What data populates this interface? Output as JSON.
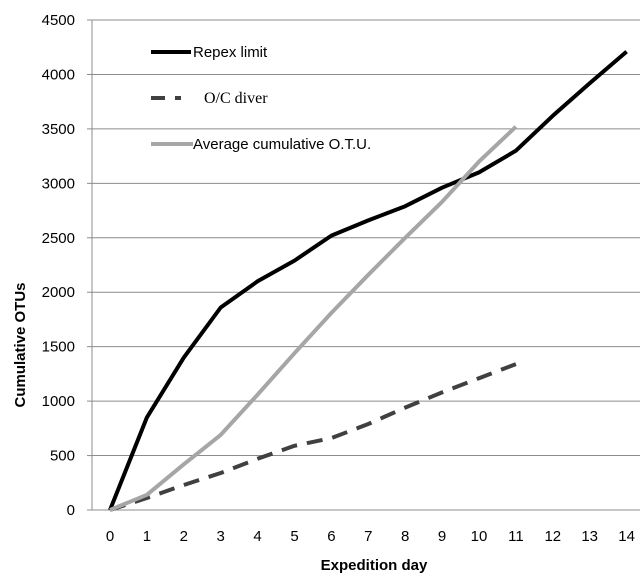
{
  "chart_data": {
    "type": "line",
    "title": "",
    "xlabel": "Expedition day",
    "ylabel": "Cumulative OTUs",
    "xlim": [
      0,
      14
    ],
    "ylim": [
      0,
      4500
    ],
    "x_ticks": [
      0,
      1,
      2,
      3,
      4,
      5,
      6,
      7,
      8,
      9,
      10,
      11,
      12,
      13,
      14
    ],
    "y_ticks": [
      0,
      500,
      1000,
      1500,
      2000,
      2500,
      3000,
      3500,
      4000,
      4500
    ],
    "grid": "horizontal",
    "legend_position": "top-left",
    "series": [
      {
        "name": "Repex limit",
        "color": "#000000",
        "style": "solid",
        "x": [
          0,
          1,
          2,
          3,
          4,
          5,
          6,
          7,
          8,
          9,
          10,
          11,
          12,
          13,
          14
        ],
        "values": [
          0,
          850,
          1400,
          1860,
          2100,
          2290,
          2520,
          2660,
          2790,
          2960,
          3100,
          3300,
          3620,
          3920,
          4210
        ]
      },
      {
        "name": "O/C diver",
        "color": "#404040",
        "style": "dashed",
        "x": [
          0,
          1,
          2,
          3,
          4,
          5,
          6,
          7,
          8,
          9,
          10,
          11
        ],
        "values": [
          0,
          110,
          230,
          340,
          470,
          590,
          660,
          790,
          940,
          1080,
          1210,
          1340
        ]
      },
      {
        "name": "Average cumulative O.T.U.",
        "color": "#a6a6a6",
        "style": "solid",
        "x": [
          0,
          1,
          2,
          3,
          4,
          5,
          6,
          7,
          8,
          9,
          10,
          11
        ],
        "values": [
          0,
          140,
          420,
          690,
          1060,
          1440,
          1810,
          2160,
          2500,
          2830,
          3200,
          3520
        ]
      }
    ]
  }
}
